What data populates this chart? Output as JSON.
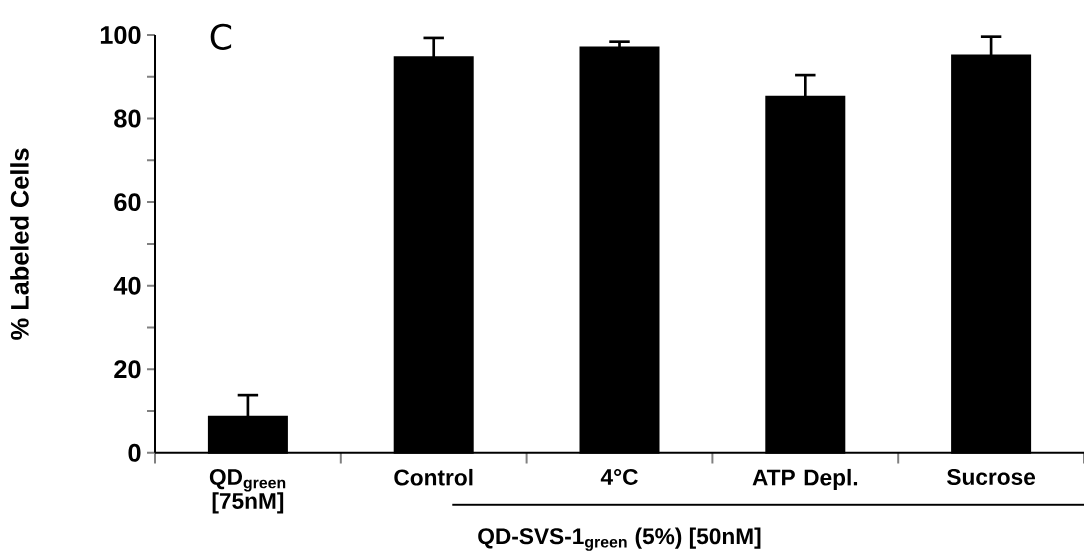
{
  "chart_data": {
    "type": "bar",
    "categories": [
      "QD$_{green}$ [75nM]",
      "Control",
      "4°C",
      "ATP Depl.",
      "Sucrose"
    ],
    "values": [
      8.6,
      94.7,
      97.0,
      85.2,
      95.1
    ],
    "errors": [
      [
        8.6,
        13.8
      ],
      [
        94.7,
        99.3
      ],
      [
        97.0,
        98.4
      ],
      [
        85.2,
        90.4
      ],
      [
        95.1,
        99.6
      ]
    ],
    "color": "#000000",
    "ylabel": "% Labeled Cells",
    "xlabel": "QD-SVS-1$_{green}$ (5%) [50nM]",
    "annotations": [
      "C"
    ],
    "ylim": [
      0,
      100
    ],
    "yticks": [
      0,
      {
        "value": 10,
        "label": null
      },
      20,
      {
        "value": 30,
        "label": null
      },
      40,
      {
        "value": 50,
        "label": null
      },
      60,
      {
        "value": 70,
        "label": null
      },
      80,
      {
        "value": 90,
        "label": null
      },
      100
    ],
    "grid": false
  }
}
